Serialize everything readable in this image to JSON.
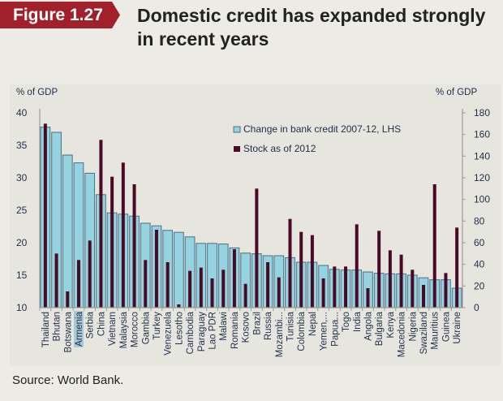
{
  "figure": {
    "tag": "Figure 1.27",
    "title": "Domestic credit has expanded strongly in recent years",
    "source": "Source: World Bank."
  },
  "colors": {
    "accent": "#a1202a",
    "bar_fill": "#94d3df",
    "bar_stroke": "#4c6f85",
    "stock_fill": "#4a0a26",
    "axis": "#9a9a9a",
    "text": "#1f2d4a"
  },
  "chart_data": {
    "type": "bar",
    "title": "Domestic credit has expanded strongly in recent years",
    "xlabel": "",
    "ylabel": "% of GDP",
    "ylabel_right": "% of GDP",
    "ylim": [
      10,
      40
    ],
    "ylim_right": [
      0,
      180
    ],
    "yticks": [
      10,
      15,
      20,
      25,
      30,
      35,
      40
    ],
    "yticks_right": [
      0,
      20,
      40,
      60,
      80,
      100,
      120,
      140,
      160,
      180
    ],
    "grid": false,
    "legend_position": "top-right",
    "highlighted_category": "Armenia",
    "categories": [
      "Thailand",
      "Bhutan",
      "Botswana",
      "Armenia",
      "Serbia",
      "China",
      "Vietnam",
      "Malaysia",
      "Morocco",
      "Gambia",
      "Turkey",
      "Venezuela",
      "Lesotho",
      "Cambodia",
      "Paraguay",
      "Lao PDR",
      "Malawi",
      "Romania",
      "Kosovo",
      "Brazil",
      "Russia",
      "Mozambi...",
      "Tunisia",
      "Colombia",
      "Nepal",
      "Yemen,...",
      "Papua...",
      "Togo",
      "India",
      "Angola",
      "Bulgaria",
      "Kenya",
      "Macedonia",
      "Nigeria",
      "Swaziland",
      "Mauritius",
      "Guinea",
      "Ukraine"
    ],
    "series": [
      {
        "name": "Change in bank credit 2007-12, LHS",
        "axis": "left",
        "values": [
          37.8,
          37.0,
          33.5,
          32.3,
          30.7,
          27.4,
          24.6,
          24.4,
          24.1,
          23.0,
          22.6,
          21.9,
          21.6,
          20.9,
          19.9,
          19.9,
          19.8,
          19.2,
          18.4,
          18.3,
          18.0,
          18.0,
          17.7,
          17.0,
          17.0,
          16.5,
          15.9,
          15.8,
          15.8,
          15.5,
          15.3,
          15.2,
          15.2,
          15.0,
          14.6,
          14.3,
          14.3,
          13.0
        ]
      },
      {
        "name": "Stock as of 2012",
        "axis": "right",
        "values": [
          170,
          50,
          15,
          44,
          62,
          155,
          121,
          134,
          114,
          44,
          72,
          42,
          3,
          34,
          37,
          27,
          35,
          54,
          22,
          110,
          42,
          28,
          82,
          70,
          67,
          27,
          38,
          38,
          77,
          18,
          71,
          53,
          49,
          35,
          21,
          114,
          32,
          74
        ]
      }
    ]
  }
}
